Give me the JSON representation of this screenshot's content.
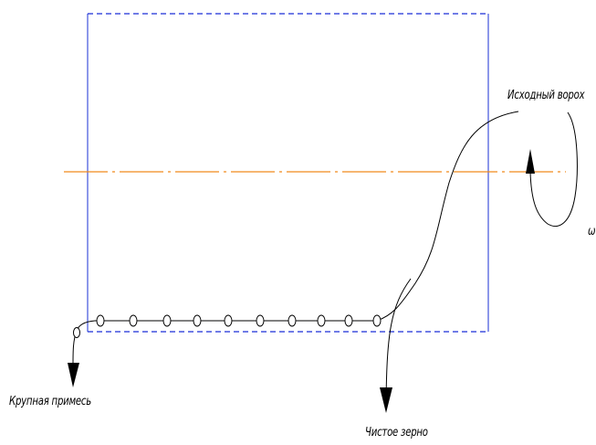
{
  "labels": {
    "source_heap": "Исходный ворох",
    "coarse_impurity": "Крупная примесь",
    "clean_grain": "Чистое зерно",
    "omega": "ω"
  },
  "colors": {
    "frame": "#1a2fd6",
    "axis": "#f08a1c",
    "line": "#000000"
  }
}
